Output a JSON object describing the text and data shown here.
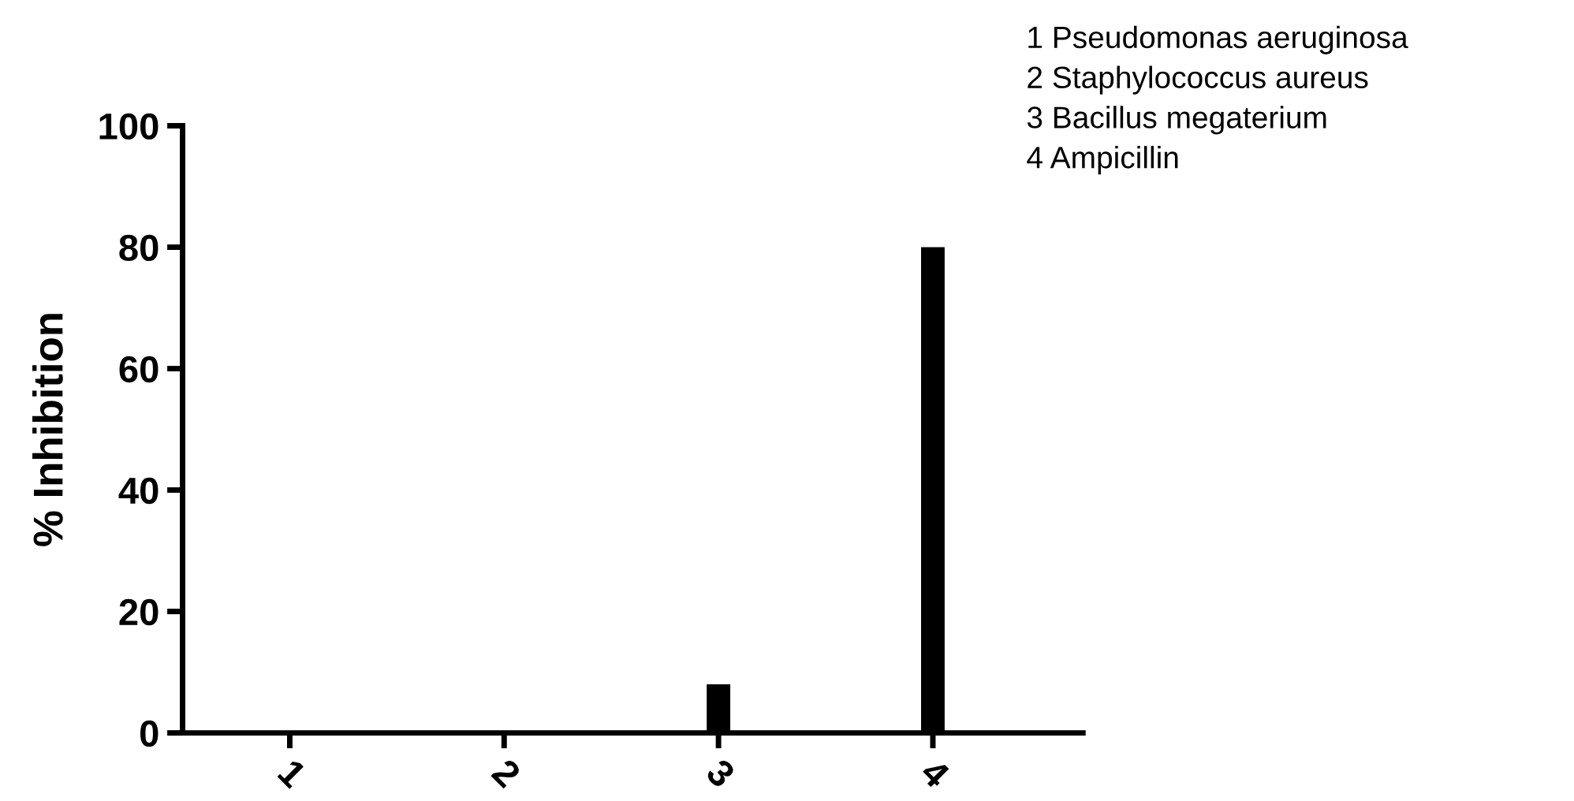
{
  "chart_data": {
    "type": "bar",
    "ylabel": "% Inhibition",
    "categories": [
      "1",
      "2",
      "3",
      "4"
    ],
    "values": [
      0,
      0,
      8,
      80
    ],
    "color": "#000000",
    "ylim": [
      0,
      100
    ],
    "yticks": [
      0,
      20,
      40,
      60,
      80,
      100
    ],
    "grid": false,
    "legend": false,
    "annotations": [
      "1 Pseudomonas aeruginosa",
      "2 Staphylococcus aureus",
      "3 Bacillus megaterium",
      "4 Ampicillin"
    ]
  }
}
